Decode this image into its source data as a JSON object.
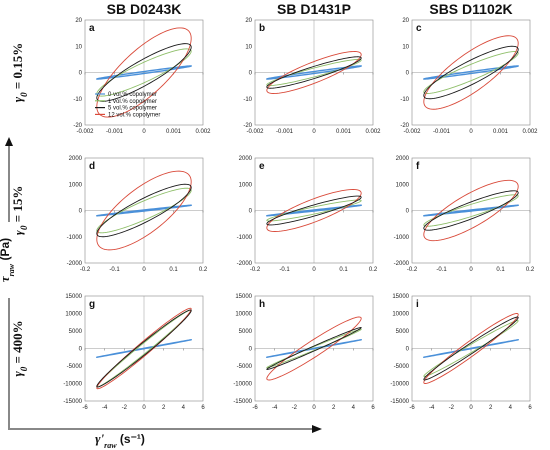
{
  "column_titles": [
    "SB D0243K",
    "SB D1431P",
    "SBS D1102K"
  ],
  "row_labels": [
    {
      "symbol": "γ",
      "sub": "0",
      "rest": " = 0.15%"
    },
    {
      "symbol": "γ",
      "sub": "0",
      "rest": " = 15%"
    },
    {
      "symbol": "γ",
      "sub": "0",
      "rest": " = 400%"
    }
  ],
  "y_axis_label": {
    "symbol": "τ",
    "sub": "raw",
    "unit": " (Pa)"
  },
  "x_axis_label": {
    "symbol": "γ'",
    "sub": "raw",
    "unit": " (s⁻¹)"
  },
  "legend": [
    "0 vol.% copolymer",
    "1 vol.% copolymer",
    "5 vol.% copolymer",
    "12 vol.% copolymer"
  ],
  "colors": {
    "s0": "#4a90d9",
    "s1": "#8fbf6a",
    "s5": "#1a1a1a",
    "s12": "#d94a3a"
  },
  "chart_data": [
    {
      "type": "line",
      "panel": "a",
      "xlim": [
        -0.002,
        0.002
      ],
      "ylim": [
        -20,
        20
      ],
      "xticks": [
        "-0.002",
        "-0.001",
        "0",
        "0.001",
        "0.002"
      ],
      "yticks": [
        "20",
        "10",
        "0",
        "-10",
        "-20"
      ],
      "series": [
        {
          "name": "0 vol.% copolymer",
          "amp": 2.5,
          "phase": 0.15
        },
        {
          "name": "1 vol.% copolymer",
          "amp": 9,
          "phase": 0.45
        },
        {
          "name": "5 vol.% copolymer",
          "amp": 11,
          "phase": 0.5
        },
        {
          "name": "12 vol.% copolymer",
          "amp": 17,
          "phase": 0.7
        }
      ]
    },
    {
      "type": "line",
      "panel": "b",
      "xlim": [
        -0.002,
        0.002
      ],
      "ylim": [
        -20,
        20
      ],
      "xticks": [
        "-0.002",
        "-0.001",
        "0",
        "0.001",
        "0.002"
      ],
      "yticks": [
        "20",
        "10",
        "0",
        "-10",
        "-20"
      ],
      "series": [
        {
          "name": "0 vol.% copolymer",
          "amp": 2.5,
          "phase": 0.15
        },
        {
          "name": "1 vol.% copolymer",
          "amp": 5,
          "phase": 0.35
        },
        {
          "name": "5 vol.% copolymer",
          "amp": 6,
          "phase": 0.4
        },
        {
          "name": "12 vol.% copolymer",
          "amp": 8,
          "phase": 0.55
        }
      ]
    },
    {
      "type": "line",
      "panel": "c",
      "xlim": [
        -0.002,
        0.002
      ],
      "ylim": [
        -20,
        20
      ],
      "xticks": [
        "-0.002",
        "-0.001",
        "0",
        "0.001",
        "0.002"
      ],
      "yticks": [
        "20",
        "10",
        "0",
        "-10",
        "-20"
      ],
      "series": [
        {
          "name": "0 vol.% copolymer",
          "amp": 2.5,
          "phase": 0.15
        },
        {
          "name": "1 vol.% copolymer",
          "amp": 8,
          "phase": 0.4
        },
        {
          "name": "5 vol.% copolymer",
          "amp": 10,
          "phase": 0.5
        },
        {
          "name": "12 vol.% copolymer",
          "amp": 14,
          "phase": 0.65
        }
      ]
    },
    {
      "type": "line",
      "panel": "d",
      "xlim": [
        -0.2,
        0.2
      ],
      "ylim": [
        -2000,
        2000
      ],
      "xticks": [
        "-0.2",
        "-0.1",
        "0",
        "0.1",
        "0.2"
      ],
      "yticks": [
        "2000",
        "1000",
        "0",
        "-1000",
        "-2000"
      ],
      "series": [
        {
          "name": "0 vol.% copolymer",
          "amp": 200,
          "phase": 0.1
        },
        {
          "name": "1 vol.% copolymer",
          "amp": 850,
          "phase": 0.45
        },
        {
          "name": "5 vol.% copolymer",
          "amp": 1000,
          "phase": 0.5
        },
        {
          "name": "12 vol.% copolymer",
          "amp": 1500,
          "phase": 0.75
        }
      ]
    },
    {
      "type": "line",
      "panel": "e",
      "xlim": [
        -0.2,
        0.2
      ],
      "ylim": [
        -2000,
        2000
      ],
      "xticks": [
        "-0.2",
        "-0.1",
        "0",
        "0.1",
        "0.2"
      ],
      "yticks": [
        "2000",
        "1000",
        "0",
        "-1000",
        "-2000"
      ],
      "series": [
        {
          "name": "0 vol.% copolymer",
          "amp": 200,
          "phase": 0.1
        },
        {
          "name": "1 vol.% copolymer",
          "amp": 400,
          "phase": 0.35
        },
        {
          "name": "5 vol.% copolymer",
          "amp": 550,
          "phase": 0.4
        },
        {
          "name": "12 vol.% copolymer",
          "amp": 800,
          "phase": 0.6
        }
      ]
    },
    {
      "type": "line",
      "panel": "f",
      "xlim": [
        -0.2,
        0.2
      ],
      "ylim": [
        -2000,
        2000
      ],
      "xticks": [
        "-0.2",
        "-0.1",
        "0",
        "0.1",
        "0.2"
      ],
      "yticks": [
        "2000",
        "1000",
        "0",
        "-1000",
        "-2000"
      ],
      "series": [
        {
          "name": "0 vol.% copolymer",
          "amp": 200,
          "phase": 0.1
        },
        {
          "name": "1 vol.% copolymer",
          "amp": 600,
          "phase": 0.4
        },
        {
          "name": "5 vol.% copolymer",
          "amp": 750,
          "phase": 0.45
        },
        {
          "name": "12 vol.% copolymer",
          "amp": 1150,
          "phase": 0.65
        }
      ]
    },
    {
      "type": "line",
      "panel": "g",
      "xlim": [
        -6,
        6
      ],
      "ylim": [
        -15000,
        15000
      ],
      "xticks": [
        "-6",
        "-4",
        "-2",
        "0",
        "2",
        "4",
        "6"
      ],
      "yticks": [
        "15000",
        "10000",
        "5000",
        "0",
        "-5000",
        "-10000",
        "-15000"
      ],
      "series": [
        {
          "name": "0 vol.% copolymer",
          "amp": 2500,
          "phase": 0.02
        },
        {
          "name": "1 vol.% copolymer",
          "amp": 11000,
          "phase": 0.15
        },
        {
          "name": "5 vol.% copolymer",
          "amp": 11000,
          "phase": 0.18
        },
        {
          "name": "12 vol.% copolymer",
          "amp": 11500,
          "phase": 0.2
        }
      ]
    },
    {
      "type": "line",
      "panel": "h",
      "xlim": [
        -6,
        6
      ],
      "ylim": [
        -15000,
        15000
      ],
      "xticks": [
        "-6",
        "-4",
        "-2",
        "0",
        "2",
        "4",
        "6"
      ],
      "yticks": [
        "15000",
        "10000",
        "5000",
        "0",
        "-5000",
        "-10000",
        "-15000"
      ],
      "series": [
        {
          "name": "0 vol.% copolymer",
          "amp": 2500,
          "phase": 0.02
        },
        {
          "name": "1 vol.% copolymer",
          "amp": 5500,
          "phase": 0.1
        },
        {
          "name": "5 vol.% copolymer",
          "amp": 6000,
          "phase": 0.12
        },
        {
          "name": "12 vol.% copolymer",
          "amp": 9000,
          "phase": 0.3
        }
      ]
    },
    {
      "type": "line",
      "panel": "i",
      "xlim": [
        -6,
        6
      ],
      "ylim": [
        -15000,
        15000
      ],
      "xticks": [
        "-6",
        "-4",
        "-2",
        "0",
        "2",
        "4",
        "6"
      ],
      "yticks": [
        "15000",
        "10000",
        "5000",
        "0",
        "-5000",
        "-10000",
        "-15000"
      ],
      "series": [
        {
          "name": "0 vol.% copolymer",
          "amp": 2500,
          "phase": 0.02
        },
        {
          "name": "1 vol.% copolymer",
          "amp": 8000,
          "phase": 0.15
        },
        {
          "name": "5 vol.% copolymer",
          "amp": 9000,
          "phase": 0.18
        },
        {
          "name": "12 vol.% copolymer",
          "amp": 10000,
          "phase": 0.25
        }
      ]
    }
  ]
}
